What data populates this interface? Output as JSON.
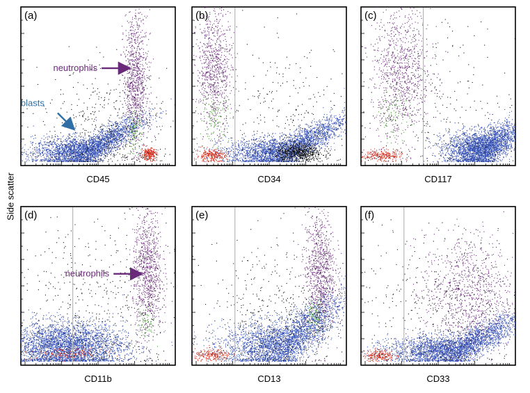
{
  "figure": {
    "ylabel": "Side scatter",
    "colors": {
      "blast": "#3550b4",
      "neutrophil": "#6a2a7a",
      "lymph": "#d42a1a",
      "green": "#52a33c",
      "black": "#111111"
    }
  },
  "chart_data": [
    {
      "type": "scatter",
      "panel": "(a)",
      "xlabel": "CD45",
      "xlim": [
        0,
        1
      ],
      "ylim": [
        0,
        1
      ],
      "grid": false,
      "annotations": [
        {
          "text": "neutrophils",
          "color": "#6a2a7a",
          "points_to": [
            0.72,
            0.62
          ]
        },
        {
          "text": "blasts",
          "color": "#2f6fa6",
          "points_to": [
            0.35,
            0.22
          ]
        }
      ],
      "populations": [
        {
          "name": "blasts",
          "color": "#3550b4",
          "n": 3000,
          "cx": 0.42,
          "cy": 0.06,
          "sx": 0.18,
          "sy": 0.05,
          "tilt": 0.35
        },
        {
          "name": "neutrophils",
          "color": "#6a2a7a",
          "n": 900,
          "cx": 0.75,
          "cy": 0.55,
          "sx": 0.04,
          "sy": 0.22,
          "tilt": 0
        },
        {
          "name": "lymphocytes",
          "color": "#d42a1a",
          "n": 250,
          "cx": 0.84,
          "cy": 0.05,
          "sx": 0.025,
          "sy": 0.02,
          "tilt": 0
        },
        {
          "name": "other",
          "color": "#52a33c",
          "n": 120,
          "cx": 0.74,
          "cy": 0.2,
          "sx": 0.025,
          "sy": 0.06,
          "tilt": 0
        },
        {
          "name": "other",
          "color": "#111111",
          "n": 500,
          "cx": 0.55,
          "cy": 0.2,
          "sx": 0.22,
          "sy": 0.2,
          "tilt": 0
        }
      ]
    },
    {
      "type": "scatter",
      "panel": "(b)",
      "xlabel": "CD34",
      "xlim": [
        0,
        1
      ],
      "ylim": [
        0,
        1
      ],
      "gate_x": 0.27,
      "grid": false,
      "populations": [
        {
          "name": "blasts",
          "color": "#3550b4",
          "n": 3000,
          "cx": 0.62,
          "cy": 0.06,
          "sx": 0.2,
          "sy": 0.05,
          "tilt": 0.35
        },
        {
          "name": "blasts-dense",
          "color": "#111111",
          "n": 600,
          "cx": 0.7,
          "cy": 0.06,
          "sx": 0.08,
          "sy": 0.03,
          "tilt": 0
        },
        {
          "name": "neutrophils",
          "color": "#6a2a7a",
          "n": 800,
          "cx": 0.13,
          "cy": 0.62,
          "sx": 0.06,
          "sy": 0.2,
          "tilt": 0
        },
        {
          "name": "lymphocytes",
          "color": "#d42a1a",
          "n": 250,
          "cx": 0.11,
          "cy": 0.04,
          "sx": 0.05,
          "sy": 0.02,
          "tilt": 0
        },
        {
          "name": "other",
          "color": "#52a33c",
          "n": 120,
          "cx": 0.13,
          "cy": 0.3,
          "sx": 0.05,
          "sy": 0.08,
          "tilt": 0
        },
        {
          "name": "other",
          "color": "#111111",
          "n": 300,
          "cx": 0.6,
          "cy": 0.3,
          "sx": 0.25,
          "sy": 0.25,
          "tilt": 0
        }
      ]
    },
    {
      "type": "scatter",
      "panel": "(c)",
      "xlabel": "CD117",
      "xlim": [
        0,
        1
      ],
      "ylim": [
        0,
        1
      ],
      "gate_x": 0.4,
      "grid": false,
      "populations": [
        {
          "name": "blasts",
          "color": "#3550b4",
          "n": 3000,
          "cx": 0.8,
          "cy": 0.08,
          "sx": 0.12,
          "sy": 0.06,
          "tilt": 0.3
        },
        {
          "name": "neutrophils",
          "color": "#6a2a7a",
          "n": 900,
          "cx": 0.25,
          "cy": 0.6,
          "sx": 0.1,
          "sy": 0.22,
          "tilt": 0
        },
        {
          "name": "lymphocytes",
          "color": "#d42a1a",
          "n": 250,
          "cx": 0.12,
          "cy": 0.04,
          "sx": 0.07,
          "sy": 0.02,
          "tilt": 0
        },
        {
          "name": "other",
          "color": "#52a33c",
          "n": 100,
          "cx": 0.2,
          "cy": 0.3,
          "sx": 0.05,
          "sy": 0.08,
          "tilt": 0
        },
        {
          "name": "other",
          "color": "#111111",
          "n": 300,
          "cx": 0.55,
          "cy": 0.35,
          "sx": 0.3,
          "sy": 0.3,
          "tilt": 0
        }
      ]
    },
    {
      "type": "scatter",
      "panel": "(d)",
      "xlabel": "CD11b",
      "xlim": [
        0,
        1
      ],
      "ylim": [
        0,
        1
      ],
      "gate_x": 0.33,
      "grid": false,
      "annotations": [
        {
          "text": "neutrophils",
          "color": "#6a2a7a",
          "points_to": [
            0.8,
            0.58
          ]
        }
      ],
      "populations": [
        {
          "name": "blasts",
          "color": "#3550b4",
          "n": 3500,
          "cx": 0.28,
          "cy": 0.1,
          "sx": 0.2,
          "sy": 0.08,
          "tilt": 0
        },
        {
          "name": "neutrophils",
          "color": "#6a2a7a",
          "n": 900,
          "cx": 0.83,
          "cy": 0.6,
          "sx": 0.05,
          "sy": 0.2,
          "tilt": 0
        },
        {
          "name": "lymphocytes",
          "color": "#d42a1a",
          "n": 150,
          "cx": 0.3,
          "cy": 0.05,
          "sx": 0.12,
          "sy": 0.02,
          "tilt": 0
        },
        {
          "name": "other",
          "color": "#52a33c",
          "n": 80,
          "cx": 0.82,
          "cy": 0.25,
          "sx": 0.03,
          "sy": 0.05,
          "tilt": 0
        },
        {
          "name": "other",
          "color": "#111111",
          "n": 500,
          "cx": 0.5,
          "cy": 0.35,
          "sx": 0.3,
          "sy": 0.3,
          "tilt": 0
        }
      ]
    },
    {
      "type": "scatter",
      "panel": "(e)",
      "xlabel": "CD13",
      "xlim": [
        0,
        1
      ],
      "ylim": [
        0,
        1
      ],
      "gate_x": 0.27,
      "grid": false,
      "populations": [
        {
          "name": "blasts",
          "color": "#3550b4",
          "n": 3200,
          "cx": 0.6,
          "cy": 0.1,
          "sx": 0.2,
          "sy": 0.08,
          "tilt": 0.45
        },
        {
          "name": "neutrophils",
          "color": "#6a2a7a",
          "n": 900,
          "cx": 0.84,
          "cy": 0.6,
          "sx": 0.05,
          "sy": 0.2,
          "tilt": 0
        },
        {
          "name": "lymphocytes",
          "color": "#d42a1a",
          "n": 200,
          "cx": 0.12,
          "cy": 0.04,
          "sx": 0.06,
          "sy": 0.02,
          "tilt": 0
        },
        {
          "name": "other",
          "color": "#52a33c",
          "n": 100,
          "cx": 0.8,
          "cy": 0.3,
          "sx": 0.03,
          "sy": 0.06,
          "tilt": 0
        },
        {
          "name": "other",
          "color": "#111111",
          "n": 500,
          "cx": 0.55,
          "cy": 0.3,
          "sx": 0.25,
          "sy": 0.25,
          "tilt": 0
        }
      ]
    },
    {
      "type": "scatter",
      "panel": "(f)",
      "xlabel": "CD33",
      "xlim": [
        0,
        1
      ],
      "ylim": [
        0,
        1
      ],
      "gate_x": 0.27,
      "grid": false,
      "populations": [
        {
          "name": "blasts",
          "color": "#3550b4",
          "n": 3200,
          "cx": 0.62,
          "cy": 0.07,
          "sx": 0.22,
          "sy": 0.05,
          "tilt": 0.3
        },
        {
          "name": "neutrophils",
          "color": "#6a2a7a",
          "n": 1000,
          "cx": 0.7,
          "cy": 0.45,
          "sx": 0.15,
          "sy": 0.2,
          "tilt": 0
        },
        {
          "name": "lymphocytes",
          "color": "#d42a1a",
          "n": 200,
          "cx": 0.1,
          "cy": 0.04,
          "sx": 0.05,
          "sy": 0.02,
          "tilt": 0
        },
        {
          "name": "other",
          "color": "#111111",
          "n": 400,
          "cx": 0.5,
          "cy": 0.3,
          "sx": 0.3,
          "sy": 0.3,
          "tilt": 0
        }
      ]
    }
  ]
}
